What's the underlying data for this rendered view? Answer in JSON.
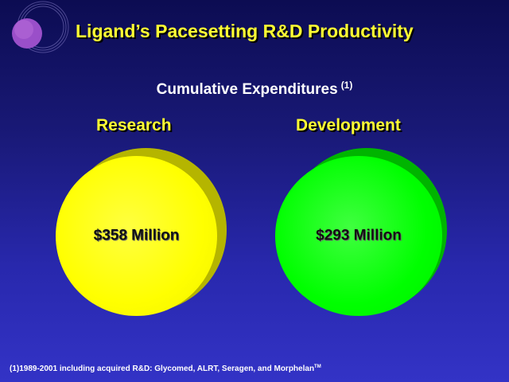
{
  "slide": {
    "title": "Ligand’s Pacesetting R&D Productivity",
    "subtitle": "Cumulative Expenditures",
    "subtitle_note": "(1)",
    "footnote": "(1)1989-2001 including acquired R&D:  Glycomed, ALRT, Seragen, and Morphelan",
    "footnote_tm": "TM"
  },
  "columns": [
    {
      "heading": "Research",
      "value": "$358 Million",
      "color": "#ffff00",
      "shadow_color": "#b5b500"
    },
    {
      "heading": "Development",
      "value": "$293 Million",
      "color": "#00ff00",
      "shadow_color": "#00b400"
    }
  ],
  "colors": {
    "title": "#ffff33",
    "background_top": "#0c0c52",
    "background_bottom": "#3333c6"
  }
}
